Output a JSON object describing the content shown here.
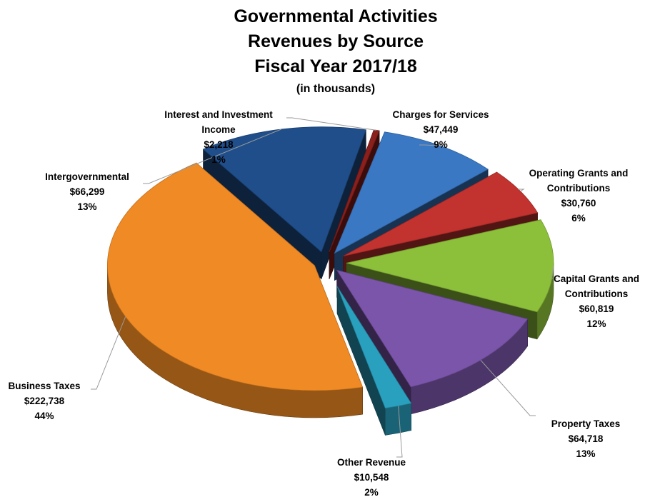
{
  "chart_data": {
    "type": "pie",
    "title": [
      "Governmental Activities",
      "Revenues by Source",
      "Fiscal Year 2017/18"
    ],
    "subtitle": "(in thousands)",
    "slices": [
      {
        "label": [
          "Charges for Services"
        ],
        "value": 47449,
        "value_text": "$47,449",
        "percent": "9%",
        "color": "#3a78c4"
      },
      {
        "label": [
          "Operating Grants and",
          "Contributions"
        ],
        "value": 30760,
        "value_text": "$30,760",
        "percent": "6%",
        "color": "#c2322e"
      },
      {
        "label": [
          "Capital Grants and",
          "Contributions"
        ],
        "value": 60819,
        "value_text": "$60,819",
        "percent": "12%",
        "color": "#8cbf3a"
      },
      {
        "label": [
          "Property Taxes"
        ],
        "value": 64718,
        "value_text": "$64,718",
        "percent": "13%",
        "color": "#7a55aa"
      },
      {
        "label": [
          "Other Revenue"
        ],
        "value": 10548,
        "value_text": "$10,548",
        "percent": "2%",
        "color": "#2aa0bf"
      },
      {
        "label": [
          "Business Taxes"
        ],
        "value": 222738,
        "value_text": "$222,738",
        "percent": "44%",
        "color": "#f08a24"
      },
      {
        "label": [
          "Intergovernmental"
        ],
        "value": 66299,
        "value_text": "$66,299",
        "percent": "13%",
        "color": "#1f4e8a"
      },
      {
        "label": [
          "Interest and Investment",
          "Income"
        ],
        "value": 2218,
        "value_text": "$2,218",
        "percent": "1%",
        "color": "#8a1f1c"
      }
    ]
  }
}
